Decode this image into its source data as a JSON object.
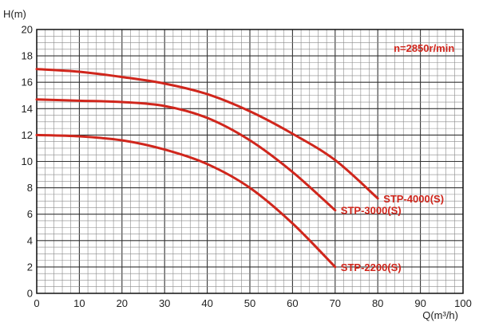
{
  "chart_data": {
    "type": "line",
    "title": "",
    "ylabel": "H(m)",
    "xlabel": "Q(m³/h)",
    "xlim": [
      0,
      100
    ],
    "ylim": [
      0,
      20
    ],
    "xticks": [
      0,
      10,
      20,
      30,
      40,
      50,
      60,
      70,
      80,
      90,
      100
    ],
    "yticks": [
      0,
      2,
      4,
      6,
      8,
      10,
      12,
      14,
      16,
      18,
      20
    ],
    "grid": true,
    "annotation": "n=2850r/min",
    "series_color": "#d0261c",
    "series": [
      {
        "name": "STP-4000(S)",
        "x": [
          0,
          10,
          20,
          30,
          40,
          50,
          60,
          70,
          80
        ],
        "y": [
          17.0,
          16.8,
          16.4,
          15.9,
          15.1,
          13.8,
          12.1,
          10.1,
          7.2
        ]
      },
      {
        "name": "STP-3000(S)",
        "x": [
          0,
          10,
          20,
          30,
          40,
          50,
          60,
          70
        ],
        "y": [
          14.7,
          14.6,
          14.5,
          14.2,
          13.3,
          11.6,
          9.2,
          6.3
        ]
      },
      {
        "name": "STP-2200(S)",
        "x": [
          0,
          10,
          20,
          30,
          40,
          50,
          60,
          70
        ],
        "y": [
          12.0,
          11.9,
          11.6,
          10.9,
          9.8,
          8.0,
          5.3,
          2.0
        ]
      }
    ]
  }
}
